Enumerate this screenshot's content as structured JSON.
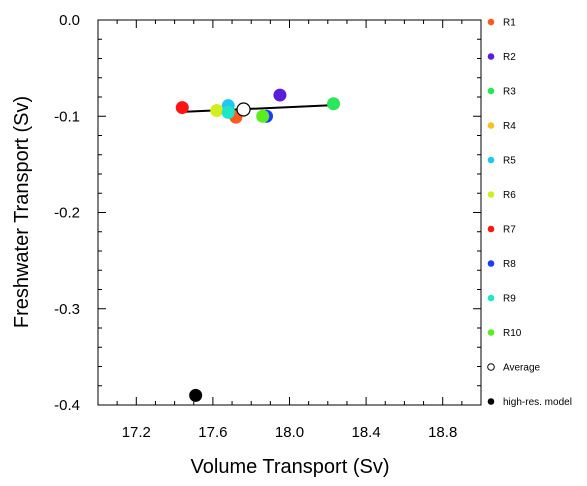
{
  "chart_data": {
    "type": "scatter",
    "xlabel": "Volume Transport (Sv)",
    "ylabel": "Freshwater Transport (Sv)",
    "xlim": [
      17.0,
      19.0
    ],
    "ylim": [
      -0.4,
      0.0
    ],
    "xticks": [
      "17.2",
      "17.6",
      "18.0",
      "18.4",
      "18.8"
    ],
    "xtick_values": [
      17.2,
      17.6,
      18.0,
      18.4,
      18.8
    ],
    "yticks": [
      "0.0",
      "-0.1",
      "-0.2",
      "-0.3",
      "-0.4"
    ],
    "ytick_values": [
      0.0,
      -0.1,
      -0.2,
      -0.3,
      -0.4
    ],
    "legend_position": "right",
    "grid": false,
    "series": [
      {
        "name": "R1",
        "color": "#ff5a1e",
        "x": 17.72,
        "y": -0.101
      },
      {
        "name": "R2",
        "color": "#5a1edc",
        "x": 17.95,
        "y": -0.078
      },
      {
        "name": "R3",
        "color": "#2ae65a",
        "x": 18.23,
        "y": -0.087
      },
      {
        "name": "R4",
        "color": "#ffbe1e",
        "x": 17.68,
        "y": -0.094
      },
      {
        "name": "R5",
        "color": "#1ec8f0",
        "x": 17.68,
        "y": -0.089
      },
      {
        "name": "R6",
        "color": "#d2ee1e",
        "x": 17.62,
        "y": -0.094
      },
      {
        "name": "R7",
        "color": "#ff1414",
        "x": 17.44,
        "y": -0.091
      },
      {
        "name": "R8",
        "color": "#1e3cff",
        "x": 17.88,
        "y": -0.1
      },
      {
        "name": "R9",
        "color": "#1ee6c8",
        "x": 17.68,
        "y": -0.096
      },
      {
        "name": "R10",
        "color": "#5aee1e",
        "x": 17.86,
        "y": -0.1
      },
      {
        "name": "Average",
        "color": "#000000",
        "x": 17.76,
        "y": -0.093,
        "hollow": true
      },
      {
        "name": "high-res. model",
        "color": "#000000",
        "x": 17.51,
        "y": -0.39
      }
    ],
    "fit_line": {
      "x": [
        17.44,
        18.23
      ],
      "y": [
        -0.0955,
        -0.0885
      ]
    }
  }
}
